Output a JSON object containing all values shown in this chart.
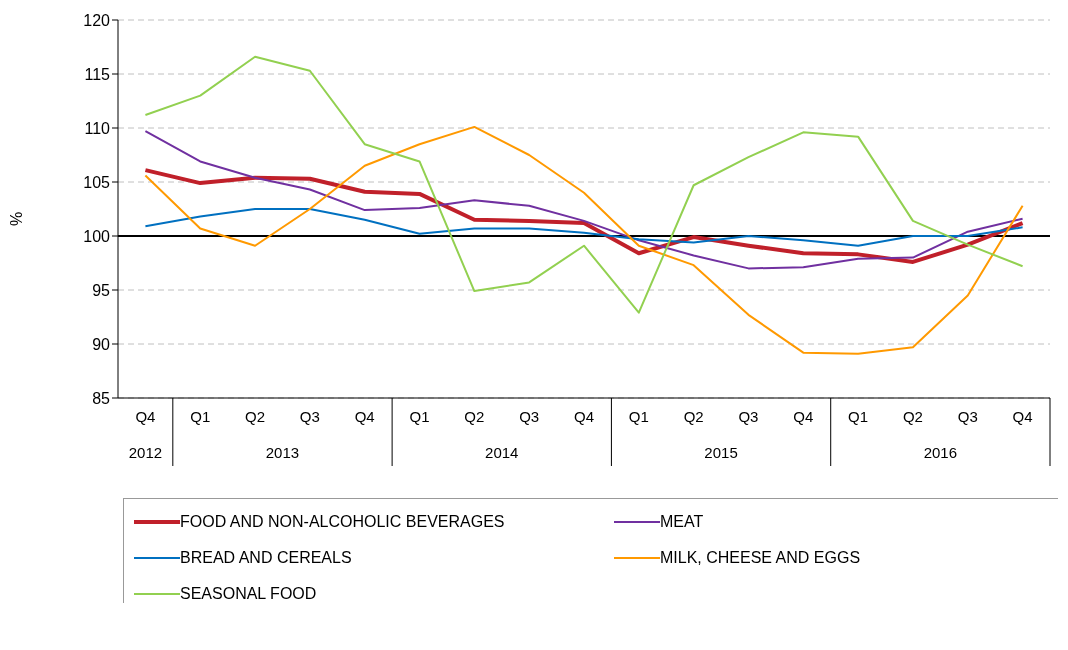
{
  "chart_data": {
    "type": "line",
    "ylabel": "%",
    "categories": [
      "Q4",
      "Q1",
      "Q2",
      "Q3",
      "Q4",
      "Q1",
      "Q2",
      "Q3",
      "Q4",
      "Q1",
      "Q2",
      "Q3",
      "Q4",
      "Q1",
      "Q2",
      "Q3",
      "Q4"
    ],
    "annotations": [
      "2012",
      "2013",
      "2014",
      "2015",
      "2016"
    ],
    "series": [
      {
        "name": "FOOD AND NON-ALCOHOLIC BEVERAGES",
        "color": "#c0202a",
        "values": [
          106.1,
          104.9,
          105.4,
          105.3,
          104.1,
          103.9,
          101.5,
          101.4,
          101.2,
          98.4,
          99.9,
          99.1,
          98.4,
          98.3,
          97.6,
          99.2,
          101.2
        ]
      },
      {
        "name": "MEAT",
        "color": "#7030a0",
        "values": [
          109.7,
          106.9,
          105.4,
          104.3,
          102.4,
          102.6,
          103.3,
          102.8,
          101.4,
          99.6,
          98.2,
          97.0,
          97.1,
          97.9,
          98.0,
          100.4,
          101.6
        ]
      },
      {
        "name": "BREAD AND CEREALS",
        "color": "#0070c0",
        "values": [
          100.9,
          101.8,
          102.5,
          102.5,
          101.5,
          100.2,
          100.7,
          100.7,
          100.3,
          99.7,
          99.4,
          100.0,
          99.6,
          99.1,
          100.0,
          100.0,
          100.8
        ]
      },
      {
        "name": "MILK, CHEESE AND EGGS",
        "color": "#ff9900",
        "values": [
          105.6,
          100.7,
          99.1,
          102.5,
          106.5,
          108.5,
          110.1,
          107.5,
          104.0,
          99.1,
          97.3,
          92.7,
          89.2,
          89.1,
          89.7,
          94.5,
          102.8
        ]
      },
      {
        "name": "SEASONAL FOOD",
        "color": "#92d050",
        "values": [
          111.2,
          113.0,
          116.6,
          115.3,
          108.5,
          106.9,
          94.9,
          95.7,
          99.1,
          92.9,
          104.7,
          107.3,
          109.6,
          109.2,
          101.4,
          99.2,
          97.2
        ]
      }
    ],
    "ylim": [
      85,
      120
    ],
    "yticks": [
      85,
      90,
      95,
      100,
      105,
      110,
      115,
      120
    ],
    "ref_lines": [
      {
        "axis": "y",
        "value": 100,
        "color": "#000000"
      }
    ],
    "grid": "y",
    "legend": "bottom",
    "marker": "none",
    "line_style": "solid"
  }
}
